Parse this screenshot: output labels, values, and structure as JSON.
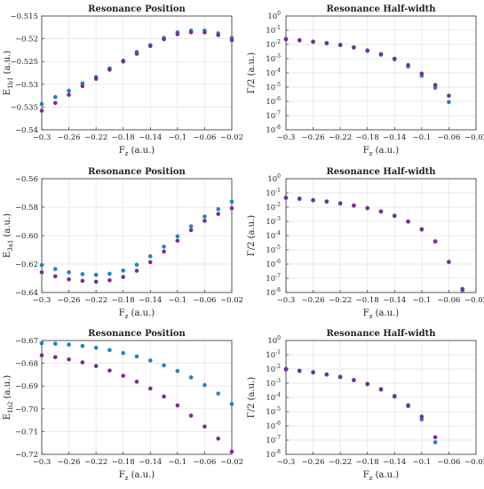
{
  "chart_data": [
    {
      "type": "scatter",
      "title": "Resonance Position",
      "xlabel": {
        "main": "F",
        "sub": "z",
        "rest": " (a.u.)"
      },
      "ylabel": {
        "main": "E",
        "sub": "1b1",
        "rest": " (a.u.)"
      },
      "xlim": [
        -0.3,
        -0.02
      ],
      "ylim": [
        -0.54,
        -0.515
      ],
      "xticks": [
        -0.3,
        -0.26,
        -0.22,
        -0.18,
        -0.14,
        -0.1,
        -0.06,
        -0.02
      ],
      "xtick_labels": [
        "−0.3",
        "−0.26",
        "−0.22",
        "−0.18",
        "−0.14",
        "−0.1",
        "−0.06",
        "−0.02"
      ],
      "yticks": [
        -0.54,
        -0.535,
        -0.53,
        -0.525,
        -0.52,
        -0.515
      ],
      "ytick_labels": [
        "−0.54",
        "−0.535",
        "−0.53",
        "−0.525",
        "−0.52",
        "−0.515"
      ],
      "log_y": false,
      "grid": true,
      "series": [
        {
          "color": "#1f84bd",
          "x": [
            -0.3,
            -0.28,
            -0.26,
            -0.24,
            -0.22,
            -0.2,
            -0.18,
            -0.16,
            -0.14,
            -0.12,
            -0.1,
            -0.08,
            -0.06,
            -0.04,
            -0.02
          ],
          "y": [
            -0.5343,
            -0.5328,
            -0.5314,
            -0.5298,
            -0.5284,
            -0.5265,
            -0.5248,
            -0.5229,
            -0.5214,
            -0.5198,
            -0.5186,
            -0.5182,
            -0.5182,
            -0.5188,
            -0.5198
          ]
        },
        {
          "color": "#7b2e8c",
          "x": [
            -0.3,
            -0.28,
            -0.26,
            -0.24,
            -0.22,
            -0.2,
            -0.18,
            -0.16,
            -0.14,
            -0.12,
            -0.1,
            -0.08,
            -0.06,
            -0.04,
            -0.02
          ],
          "y": [
            -0.5358,
            -0.5341,
            -0.5323,
            -0.5304,
            -0.5288,
            -0.5268,
            -0.525,
            -0.5233,
            -0.5216,
            -0.5201,
            -0.519,
            -0.5186,
            -0.5186,
            -0.5192,
            -0.5203
          ]
        }
      ]
    },
    {
      "type": "scatter",
      "title": "Resonance Half-width",
      "xlabel": {
        "main": "F",
        "sub": "z",
        "rest": " (a.u.)"
      },
      "ylabel": {
        "main": "Γ/2",
        "sub": "",
        "rest": " (a.u.)"
      },
      "xlim": [
        -0.3,
        -0.02
      ],
      "ylim": [
        -8,
        0
      ],
      "xticks": [
        -0.3,
        -0.26,
        -0.22,
        -0.18,
        -0.14,
        -0.1,
        -0.06,
        -0.02
      ],
      "xtick_labels": [
        "−0.3",
        "−0.26",
        "−0.22",
        "−0.18",
        "−0.14",
        "−0.1",
        "−0.06",
        "−0.02"
      ],
      "yticks": [
        0,
        -1,
        -2,
        -3,
        -4,
        -5,
        -6,
        -7,
        -8
      ],
      "ytick_labels": [
        "0",
        "-1",
        "-2",
        "-3",
        "-4",
        "-5",
        "-6",
        "-7",
        "-8"
      ],
      "ytick_base": "10",
      "log_y": true,
      "grid": true,
      "series": [
        {
          "color": "#1f84bd",
          "x": [
            -0.3,
            -0.28,
            -0.26,
            -0.24,
            -0.22,
            -0.2,
            -0.18,
            -0.16,
            -0.14,
            -0.12,
            -0.1,
            -0.08,
            -0.06
          ],
          "y": [
            -1.65,
            -1.72,
            -1.82,
            -1.92,
            -2.05,
            -2.22,
            -2.45,
            -2.72,
            -3.05,
            -3.55,
            -4.2,
            -5.05,
            -6.05
          ]
        },
        {
          "color": "#7b2e8c",
          "x": [
            -0.3,
            -0.28,
            -0.26,
            -0.24,
            -0.22,
            -0.2,
            -0.18,
            -0.16,
            -0.14,
            -0.12,
            -0.1,
            -0.08,
            -0.06
          ],
          "y": [
            -1.62,
            -1.7,
            -1.8,
            -1.9,
            -2.03,
            -2.2,
            -2.42,
            -2.68,
            -3.0,
            -3.45,
            -4.05,
            -4.85,
            -5.6
          ]
        }
      ]
    },
    {
      "type": "scatter",
      "title": "Resonance Position",
      "xlabel": {
        "main": "F",
        "sub": "z",
        "rest": " (a.u.)"
      },
      "ylabel": {
        "main": "E",
        "sub": "3a1",
        "rest": " (a.u.)"
      },
      "xlim": [
        -0.3,
        -0.02
      ],
      "ylim": [
        -0.64,
        -0.56
      ],
      "xticks": [
        -0.3,
        -0.26,
        -0.22,
        -0.18,
        -0.14,
        -0.1,
        -0.06,
        -0.02
      ],
      "xtick_labels": [
        "−0.3",
        "−0.26",
        "−0.22",
        "−0.18",
        "−0.14",
        "−0.1",
        "−0.06",
        "−0.02"
      ],
      "yticks": [
        -0.64,
        -0.62,
        -0.6,
        -0.58,
        -0.56
      ],
      "ytick_labels": [
        "−0.64",
        "−0.62",
        "−0.60",
        "−0.58",
        "−0.56"
      ],
      "log_y": false,
      "grid": true,
      "series": [
        {
          "color": "#1f84bd",
          "x": [
            -0.3,
            -0.28,
            -0.26,
            -0.24,
            -0.22,
            -0.2,
            -0.18,
            -0.16,
            -0.14,
            -0.12,
            -0.1,
            -0.08,
            -0.06,
            -0.04,
            -0.02
          ],
          "y": [
            -0.6208,
            -0.6235,
            -0.6258,
            -0.6271,
            -0.6276,
            -0.6268,
            -0.6246,
            -0.6205,
            -0.6145,
            -0.6078,
            -0.6005,
            -0.5935,
            -0.5866,
            -0.5814,
            -0.5762
          ]
        },
        {
          "color": "#7b2e8c",
          "x": [
            -0.3,
            -0.28,
            -0.26,
            -0.24,
            -0.22,
            -0.2,
            -0.18,
            -0.16,
            -0.14,
            -0.12,
            -0.1,
            -0.08,
            -0.06,
            -0.04,
            -0.02
          ],
          "y": [
            -0.6258,
            -0.6286,
            -0.6307,
            -0.6318,
            -0.6324,
            -0.6314,
            -0.6291,
            -0.6247,
            -0.6187,
            -0.6112,
            -0.6036,
            -0.5962,
            -0.5896,
            -0.5848,
            -0.5808
          ]
        }
      ]
    },
    {
      "type": "scatter",
      "title": "Resonance Half-width",
      "xlabel": {
        "main": "F",
        "sub": "z",
        "rest": " (a.u.)"
      },
      "ylabel": {
        "main": "Γ/2",
        "sub": "",
        "rest": " (a.u.)"
      },
      "xlim": [
        -0.3,
        -0.02
      ],
      "ylim": [
        -8,
        0
      ],
      "xticks": [
        -0.3,
        -0.26,
        -0.22,
        -0.18,
        -0.14,
        -0.1,
        -0.06,
        -0.02
      ],
      "xtick_labels": [
        "−0.3",
        "−0.26",
        "−0.22",
        "−0.18",
        "−0.14",
        "−0.1",
        "−0.06",
        "−0.02"
      ],
      "yticks": [
        0,
        -1,
        -2,
        -3,
        -4,
        -5,
        -6,
        -7,
        -8
      ],
      "ytick_labels": [
        "0",
        "-1",
        "-2",
        "-3",
        "-4",
        "-5",
        "-6",
        "-7",
        "-8"
      ],
      "ytick_base": "10",
      "log_y": true,
      "grid": true,
      "series": [
        {
          "color": "#1f84bd",
          "x": [
            -0.3,
            -0.28,
            -0.26,
            -0.24,
            -0.22,
            -0.2,
            -0.18,
            -0.16,
            -0.14,
            -0.12,
            -0.1,
            -0.08,
            -0.06,
            -0.04
          ],
          "y": [
            -1.35,
            -1.42,
            -1.52,
            -1.62,
            -1.75,
            -1.9,
            -2.08,
            -2.32,
            -2.62,
            -3.02,
            -3.58,
            -4.42,
            -5.85,
            -7.85
          ]
        },
        {
          "color": "#7b2e8c",
          "x": [
            -0.3,
            -0.28,
            -0.26,
            -0.24,
            -0.22,
            -0.2,
            -0.18,
            -0.16,
            -0.14,
            -0.12,
            -0.1,
            -0.08,
            -0.06,
            -0.04
          ],
          "y": [
            -1.33,
            -1.4,
            -1.5,
            -1.6,
            -1.73,
            -1.88,
            -2.06,
            -2.3,
            -2.6,
            -3.0,
            -3.55,
            -4.4,
            -5.85,
            -7.75
          ]
        }
      ]
    },
    {
      "type": "scatter",
      "title": "Resonance Position",
      "xlabel": {
        "main": "F",
        "sub": "z",
        "rest": " (a.u.)"
      },
      "ylabel": {
        "main": "E",
        "sub": "1b2",
        "rest": " (a.u.)"
      },
      "xlim": [
        -0.3,
        -0.02
      ],
      "ylim": [
        -0.72,
        -0.67
      ],
      "xticks": [
        -0.3,
        -0.26,
        -0.22,
        -0.18,
        -0.14,
        -0.1,
        -0.06,
        -0.02
      ],
      "xtick_labels": [
        "−0.3",
        "−0.26",
        "−0.22",
        "−0.18",
        "−0.14",
        "−0.1",
        "−0.06",
        "−0.02"
      ],
      "yticks": [
        -0.72,
        -0.71,
        -0.7,
        -0.69,
        -0.68,
        -0.67
      ],
      "ytick_labels": [
        "−0.72",
        "−0.71",
        "−0.70",
        "−0.69",
        "−0.68",
        "−0.67"
      ],
      "log_y": false,
      "grid": true,
      "series": [
        {
          "color": "#1f84bd",
          "x": [
            -0.3,
            -0.28,
            -0.26,
            -0.24,
            -0.22,
            -0.2,
            -0.18,
            -0.16,
            -0.14,
            -0.12,
            -0.1,
            -0.08,
            -0.06,
            -0.04,
            -0.02
          ],
          "y": [
            -0.6712,
            -0.6714,
            -0.6718,
            -0.6724,
            -0.6732,
            -0.6742,
            -0.6755,
            -0.677,
            -0.6788,
            -0.6809,
            -0.6834,
            -0.6862,
            -0.6896,
            -0.6933,
            -0.6979
          ]
        },
        {
          "color": "#7b2e8c",
          "x": [
            -0.3,
            -0.28,
            -0.26,
            -0.24,
            -0.22,
            -0.2,
            -0.18,
            -0.16,
            -0.14,
            -0.12,
            -0.1,
            -0.08,
            -0.06,
            -0.04,
            -0.02
          ],
          "y": [
            -0.6765,
            -0.6773,
            -0.6783,
            -0.6796,
            -0.6812,
            -0.6832,
            -0.6855,
            -0.6881,
            -0.6911,
            -0.6946,
            -0.6985,
            -0.703,
            -0.7078,
            -0.7131,
            -0.7188
          ]
        }
      ]
    },
    {
      "type": "scatter",
      "title": "Resonance Half-width",
      "xlabel": {
        "main": "F",
        "sub": "z",
        "rest": " (a.u.)"
      },
      "ylabel": {
        "main": "Γ/2",
        "sub": "",
        "rest": " (a.u.)"
      },
      "xlim": [
        -0.3,
        -0.02
      ],
      "ylim": [
        -8,
        0
      ],
      "xticks": [
        -0.3,
        -0.26,
        -0.22,
        -0.18,
        -0.14,
        -0.1,
        -0.06,
        -0.02
      ],
      "xtick_labels": [
        "−0.3",
        "−0.26",
        "−0.22",
        "−0.18",
        "−0.14",
        "−0.1",
        "−0.06",
        "−0.02"
      ],
      "yticks": [
        0,
        -1,
        -2,
        -3,
        -4,
        -5,
        -6,
        -7,
        -8
      ],
      "ytick_labels": [
        "0",
        "-1",
        "-2",
        "-3",
        "-4",
        "-5",
        "-6",
        "-7",
        "-8"
      ],
      "ytick_base": "10",
      "log_y": true,
      "grid": true,
      "series": [
        {
          "color": "#1f84bd",
          "x": [
            -0.3,
            -0.28,
            -0.26,
            -0.24,
            -0.22,
            -0.2,
            -0.18,
            -0.16,
            -0.14,
            -0.12,
            -0.1,
            -0.08
          ],
          "y": [
            -2.05,
            -2.15,
            -2.25,
            -2.4,
            -2.58,
            -2.8,
            -3.08,
            -3.45,
            -3.95,
            -4.62,
            -5.55,
            -7.15
          ]
        },
        {
          "color": "#7b2e8c",
          "x": [
            -0.3,
            -0.28,
            -0.26,
            -0.24,
            -0.22,
            -0.2,
            -0.18,
            -0.16,
            -0.14,
            -0.12,
            -0.1,
            -0.08
          ],
          "y": [
            -2.0,
            -2.12,
            -2.22,
            -2.38,
            -2.55,
            -2.78,
            -3.05,
            -3.42,
            -3.9,
            -4.55,
            -5.35,
            -6.8
          ]
        }
      ]
    }
  ]
}
